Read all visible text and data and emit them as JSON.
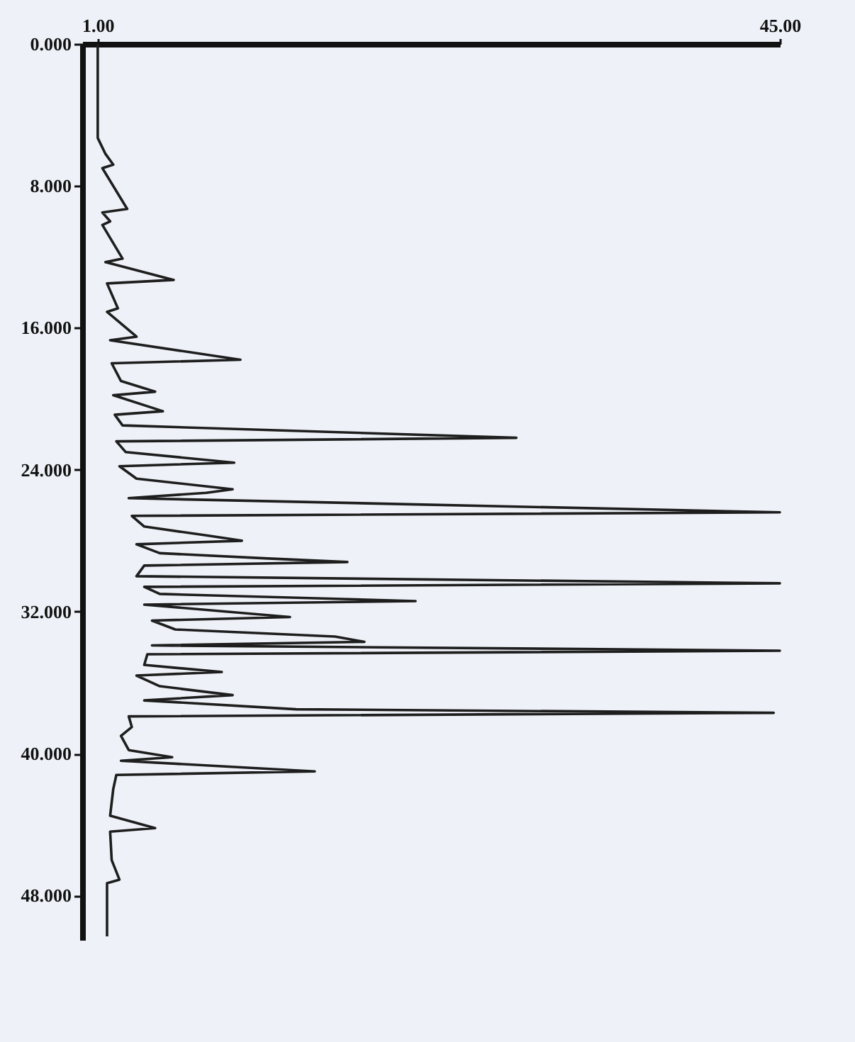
{
  "chart_data": {
    "type": "line",
    "orientation": "horizontal",
    "color": "#1e1e1e",
    "x": [
      0,
      5.3,
      6.2,
      6.8,
      7.0,
      9.3,
      9.5,
      10.0,
      10.2,
      12.1,
      12.3,
      13.3,
      13.5,
      14.9,
      15.1,
      16.5,
      16.7,
      17.8,
      18.0,
      19.0,
      19.6,
      19.8,
      20.7,
      20.9,
      21.5,
      22.2,
      22.4,
      23.0,
      23.6,
      23.8,
      24.5,
      25.1,
      25.3,
      25.6,
      26.4,
      26.6,
      27.2,
      27.7,
      28.0,
      28.2,
      28.7,
      29.0,
      29.2,
      29.4,
      30.0,
      30.4,
      30.6,
      31.0,
      31.4,
      31.6,
      32.3,
      32.5,
      33.0,
      33.4,
      33.7,
      33.9,
      34.2,
      34.4,
      35.0,
      35.4,
      35.6,
      36.2,
      36.7,
      37.0,
      37.5,
      37.7,
      37.9,
      38.5,
      39.0,
      39.8,
      40.2,
      40.4,
      41.0,
      41.2,
      42.0,
      43.5,
      44.2,
      44.4,
      46.0,
      47.1,
      47.3,
      50.3
    ],
    "values": [
      1.0,
      1.0,
      1.5,
      2.0,
      1.3,
      2.9,
      1.3,
      1.8,
      1.3,
      2.6,
      1.5,
      5.9,
      1.6,
      2.3,
      1.6,
      3.5,
      1.8,
      10.2,
      1.9,
      2.5,
      4.7,
      2.0,
      5.2,
      2.1,
      2.6,
      28.0,
      2.2,
      2.8,
      9.8,
      2.4,
      3.5,
      9.7,
      8.0,
      3.0,
      45,
      3.2,
      4.0,
      8.0,
      10.3,
      3.5,
      5.0,
      12.0,
      17.1,
      4.0,
      3.5,
      45,
      4.0,
      5.0,
      21.5,
      4.0,
      13.4,
      4.5,
      6.0,
      16.3,
      18.2,
      4.5,
      45,
      4.2,
      4.0,
      9.0,
      3.5,
      5.0,
      9.7,
      4.0,
      13.8,
      44.6,
      3.0,
      3.2,
      2.5,
      3.0,
      5.8,
      2.5,
      15.0,
      2.2,
      2.0,
      1.8,
      4.7,
      1.8,
      1.9,
      2.4,
      1.6,
      1.6
    ],
    "xlim": [
      0,
      45
    ],
    "xticks": [
      {
        "value": 1,
        "label": "1.00"
      },
      {
        "value": 45,
        "label": "45.00"
      }
    ],
    "ylim": [
      50.5,
      0
    ],
    "yticks": [
      {
        "value": 0,
        "label": "0.000"
      },
      {
        "value": 8,
        "label": "8.000"
      },
      {
        "value": 16,
        "label": "16.000"
      },
      {
        "value": 24,
        "label": "24.000"
      },
      {
        "value": 32,
        "label": "32.000"
      },
      {
        "value": 40,
        "label": "40.000"
      },
      {
        "value": 48,
        "label": "48.000"
      }
    ],
    "grid": false,
    "marker": "none",
    "line_style": "solid"
  }
}
